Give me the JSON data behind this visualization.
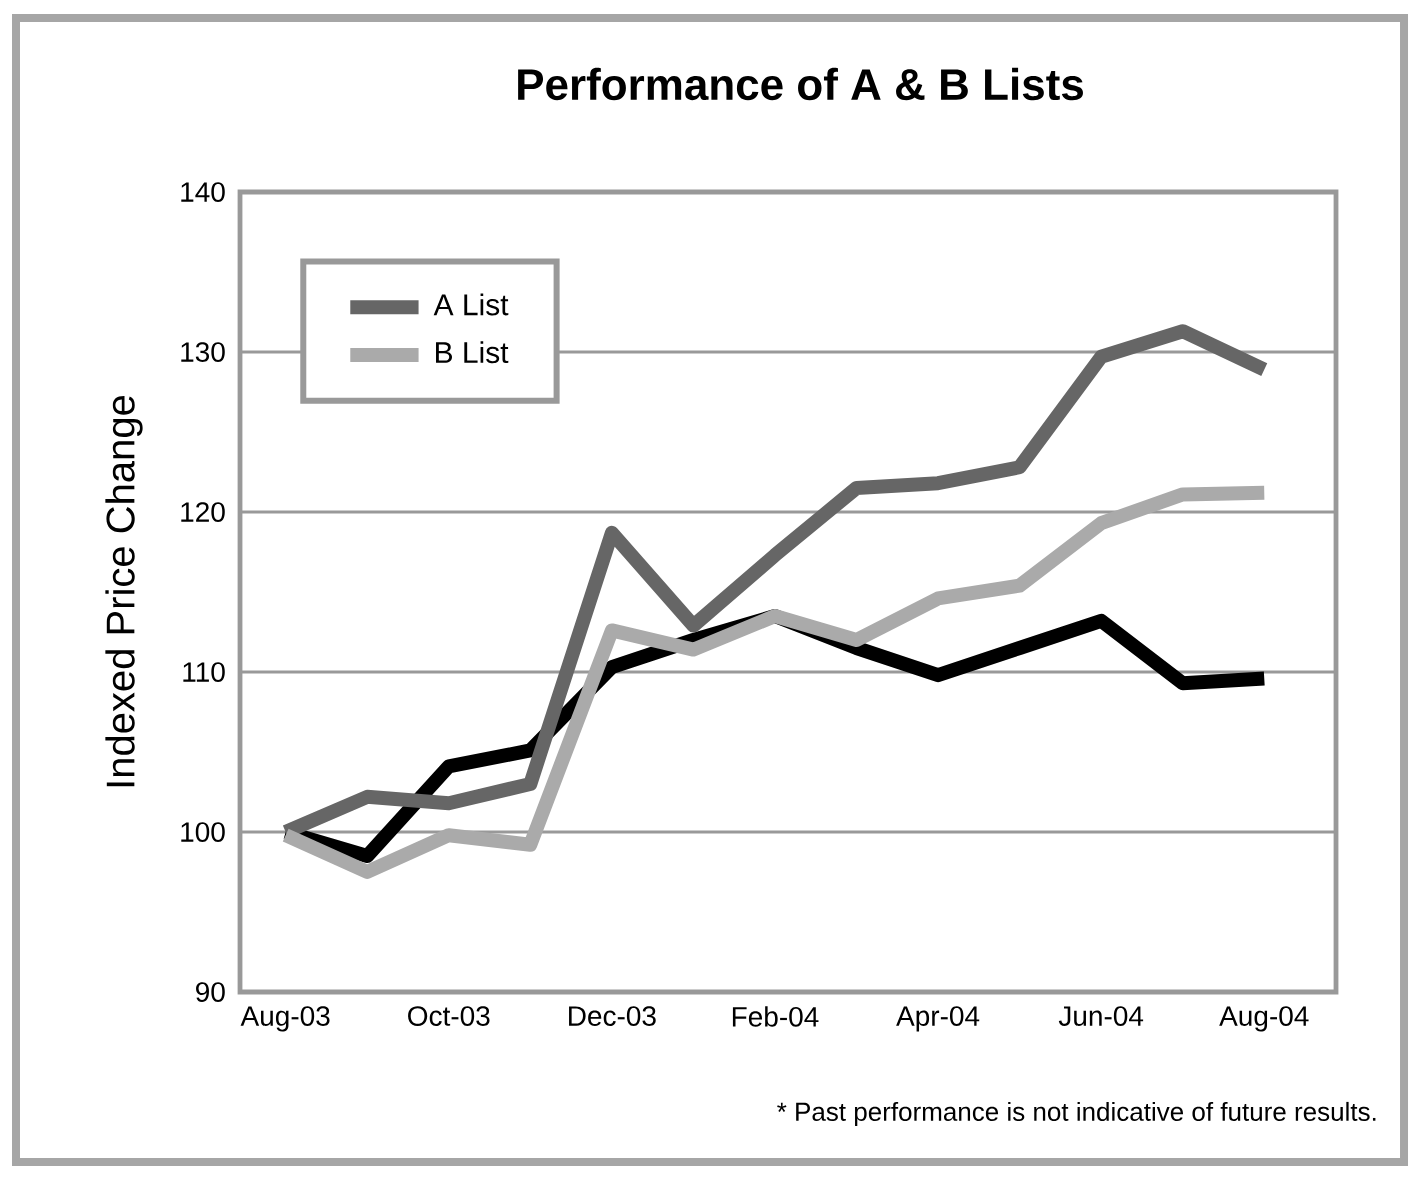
{
  "chart_data": {
    "type": "line",
    "title": "Performance of A & B Lists",
    "ylabel": "Indexed Price Change",
    "annotations": [
      "* Past performance is not indicative of future results."
    ],
    "categories": [
      "Aug-03",
      null,
      "Oct-03",
      null,
      "Dec-03",
      null,
      "Feb-04",
      null,
      "Apr-04",
      null,
      "Jun-04",
      null,
      "Aug-04"
    ],
    "series": [
      {
        "color": "#000000",
        "values": [
          100,
          98.5,
          104.1,
          105.1,
          110.3,
          112,
          113.5,
          111.5,
          109.8,
          111.5,
          113.2,
          109.3,
          109.6
        ]
      },
      {
        "name": "A List",
        "color": "#666666",
        "values": [
          100,
          102.2,
          101.8,
          103,
          118.7,
          112.9,
          117.3,
          121.5,
          121.8,
          122.8,
          129.7,
          131.3,
          128.9
        ]
      },
      {
        "name": "B List",
        "color": "#aaaaaa",
        "values": [
          99.8,
          97.5,
          99.8,
          99.2,
          112.6,
          111.4,
          113.5,
          112,
          114.6,
          115.4,
          119.3,
          121.1,
          121.2
        ]
      }
    ],
    "ylim": [
      90,
      140
    ],
    "yticks": [
      90,
      100,
      110,
      120,
      130,
      140
    ],
    "grid": "y",
    "legend": "top left",
    "marker": "none",
    "line_style": "solid"
  }
}
